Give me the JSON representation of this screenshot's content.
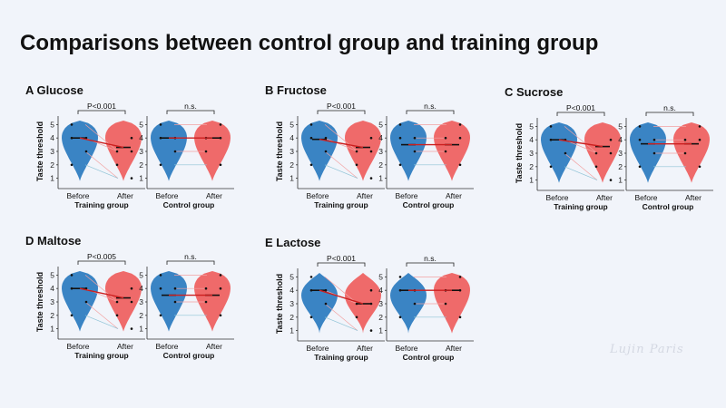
{
  "page": {
    "title": "Comparisons between control group and training group",
    "watermark": "Lujin Paris"
  },
  "colors": {
    "before": "#3a84c4",
    "after": "#ef6a6a",
    "median_line": "#cc1f1f",
    "pair_line": "#f2a2a2",
    "pair_line_alt": "#8fc3d6",
    "dot": "#111111"
  },
  "chart_data": [
    {
      "type": "violin",
      "label": "A Glucose",
      "group": "Training group",
      "categories": [
        "Before",
        "After"
      ],
      "ylabel": "Taste threshold",
      "ylim": [
        0.5,
        5.5
      ],
      "yticks": [
        1,
        2,
        3,
        4,
        5
      ],
      "annotation": "P<0.001",
      "series": [
        {
          "name": "Before",
          "median": 4
        },
        {
          "name": "After",
          "median": 3.3
        }
      ]
    },
    {
      "type": "violin",
      "label": "A Glucose",
      "group": "Control group",
      "categories": [
        "Before",
        "After"
      ],
      "ylabel": "",
      "ylim": [
        0.5,
        5.5
      ],
      "yticks": [
        1,
        2,
        3,
        4,
        5
      ],
      "annotation": "n.s.",
      "series": [
        {
          "name": "Before",
          "median": 4
        },
        {
          "name": "After",
          "median": 4
        }
      ]
    },
    {
      "type": "violin",
      "label": "B Fructose",
      "group": "Training group",
      "categories": [
        "Before",
        "After"
      ],
      "ylabel": "Taste threshold",
      "ylim": [
        0.5,
        5.5
      ],
      "yticks": [
        1,
        2,
        3,
        4,
        5
      ],
      "annotation": "P<0.001",
      "series": [
        {
          "name": "Before",
          "median": 3.9
        },
        {
          "name": "After",
          "median": 3.3
        }
      ]
    },
    {
      "type": "violin",
      "label": "B Fructose",
      "group": "Control group",
      "categories": [
        "Before",
        "After"
      ],
      "ylabel": "",
      "ylim": [
        0.5,
        5.5
      ],
      "yticks": [
        1,
        2,
        3,
        4,
        5
      ],
      "annotation": "n.s.",
      "series": [
        {
          "name": "Before",
          "median": 3.5
        },
        {
          "name": "After",
          "median": 3.5
        }
      ]
    },
    {
      "type": "violin",
      "label": "C Sucrose",
      "group": "Training group",
      "categories": [
        "Before",
        "After"
      ],
      "ylabel": "Taste threshold",
      "ylim": [
        0.5,
        5.5
      ],
      "yticks": [
        1,
        2,
        3,
        4,
        5
      ],
      "annotation": "P<0.001",
      "series": [
        {
          "name": "Before",
          "median": 4
        },
        {
          "name": "After",
          "median": 3.5
        }
      ]
    },
    {
      "type": "violin",
      "label": "C Sucrose",
      "group": "Control group",
      "categories": [
        "Before",
        "After"
      ],
      "ylabel": "",
      "ylim": [
        0.5,
        5.5
      ],
      "yticks": [
        1,
        2,
        3,
        4,
        5
      ],
      "annotation": "n.s.",
      "series": [
        {
          "name": "Before",
          "median": 3.7
        },
        {
          "name": "After",
          "median": 3.7
        }
      ]
    },
    {
      "type": "violin",
      "label": "D Maltose",
      "group": "Training group",
      "categories": [
        "Before",
        "After"
      ],
      "ylabel": "Taste threshold",
      "ylim": [
        0.5,
        5.5
      ],
      "yticks": [
        1,
        2,
        3,
        4,
        5
      ],
      "annotation": "P<0.005",
      "series": [
        {
          "name": "Before",
          "median": 4
        },
        {
          "name": "After",
          "median": 3.3
        }
      ]
    },
    {
      "type": "violin",
      "label": "D Maltose",
      "group": "Control group",
      "categories": [
        "Before",
        "After"
      ],
      "ylabel": "",
      "ylim": [
        0.5,
        5.5
      ],
      "yticks": [
        1,
        2,
        3,
        4,
        5
      ],
      "annotation": "n.s.",
      "series": [
        {
          "name": "Before",
          "median": 3.5
        },
        {
          "name": "After",
          "median": 3.5
        }
      ]
    },
    {
      "type": "violin",
      "label": "E Lactose",
      "group": "Training group",
      "categories": [
        "Before",
        "After"
      ],
      "ylabel": "Taste threshold",
      "ylim": [
        0.5,
        5.5
      ],
      "yticks": [
        1,
        2,
        3,
        4,
        5
      ],
      "annotation": "P<0.001",
      "series": [
        {
          "name": "Before",
          "median": 4
        },
        {
          "name": "After",
          "median": 3
        }
      ]
    },
    {
      "type": "violin",
      "label": "E Lactose",
      "group": "Control group",
      "categories": [
        "Before",
        "After"
      ],
      "ylabel": "",
      "ylim": [
        0.5,
        5.5
      ],
      "yticks": [
        1,
        2,
        3,
        4,
        5
      ],
      "annotation": "n.s.",
      "series": [
        {
          "name": "Before",
          "median": 4
        },
        {
          "name": "After",
          "median": 4
        }
      ]
    }
  ]
}
